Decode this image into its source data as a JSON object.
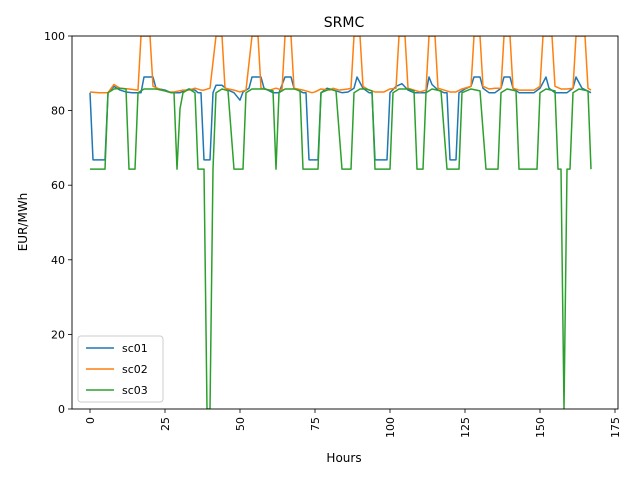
{
  "chart_data": {
    "type": "line",
    "title": "SRMC",
    "xlabel": "Hours",
    "ylabel": "EUR/MWh",
    "xlim": [
      -6,
      176
    ],
    "ylim": [
      0,
      100
    ],
    "xticks": [
      0,
      25,
      50,
      75,
      100,
      125,
      150,
      175
    ],
    "yticks": [
      0,
      20,
      40,
      60,
      80,
      100
    ],
    "xtick_rotation": 90,
    "grid": false,
    "legend_position": "lower-left",
    "series": [
      {
        "name": "sc01",
        "color": "#1f77b4",
        "points": [
          [
            0,
            84.8
          ],
          [
            1,
            66.8
          ],
          [
            5,
            66.8
          ],
          [
            6,
            84.8
          ],
          [
            8,
            86.5
          ],
          [
            10,
            85.5
          ],
          [
            12,
            85
          ],
          [
            14,
            84.8
          ],
          [
            17,
            84.8
          ],
          [
            18,
            89
          ],
          [
            21,
            89
          ],
          [
            22,
            86
          ],
          [
            25,
            85.5
          ],
          [
            27,
            84.8
          ],
          [
            30,
            84.8
          ],
          [
            33,
            85.8
          ],
          [
            35,
            85.5
          ],
          [
            36,
            84.8
          ],
          [
            37,
            84.8
          ],
          [
            38,
            66.8
          ],
          [
            40,
            66.8
          ],
          [
            41,
            84.8
          ],
          [
            42,
            86.8
          ],
          [
            44,
            86.8
          ],
          [
            46,
            85.5
          ],
          [
            48,
            84.8
          ],
          [
            50,
            82.8
          ],
          [
            51,
            85
          ],
          [
            53,
            86
          ],
          [
            54,
            89
          ],
          [
            57,
            89
          ],
          [
            58,
            86
          ],
          [
            61,
            84.8
          ],
          [
            63,
            84.8
          ],
          [
            65,
            89
          ],
          [
            67,
            89
          ],
          [
            68,
            86
          ],
          [
            71,
            84.8
          ],
          [
            72,
            84.8
          ],
          [
            73,
            66.8
          ],
          [
            76,
            66.8
          ],
          [
            77,
            84.8
          ],
          [
            79,
            86
          ],
          [
            81,
            85.5
          ],
          [
            84,
            84.8
          ],
          [
            86,
            85
          ],
          [
            88,
            86
          ],
          [
            89,
            89
          ],
          [
            90,
            87.5
          ],
          [
            91,
            86
          ],
          [
            93,
            84.8
          ],
          [
            94,
            84.8
          ],
          [
            95,
            66.8
          ],
          [
            99,
            66.8
          ],
          [
            100,
            84.8
          ],
          [
            102,
            86.5
          ],
          [
            104,
            87.2
          ],
          [
            106,
            85.5
          ],
          [
            108,
            84.8
          ],
          [
            110,
            84.8
          ],
          [
            112,
            84.8
          ],
          [
            113,
            89
          ],
          [
            114,
            87
          ],
          [
            116,
            85.5
          ],
          [
            118,
            84.8
          ],
          [
            119,
            84.8
          ],
          [
            120,
            66.8
          ],
          [
            122,
            66.8
          ],
          [
            123,
            84.8
          ],
          [
            125,
            85.8
          ],
          [
            127,
            86.5
          ],
          [
            128,
            89
          ],
          [
            130,
            89
          ],
          [
            131,
            86
          ],
          [
            133,
            84.8
          ],
          [
            135,
            84.8
          ],
          [
            137,
            86
          ],
          [
            138,
            89
          ],
          [
            140,
            89
          ],
          [
            141,
            86
          ],
          [
            143,
            84.8
          ],
          [
            146,
            84.8
          ],
          [
            148,
            84.8
          ],
          [
            150,
            86
          ],
          [
            152,
            89
          ],
          [
            153,
            86
          ],
          [
            155,
            84.8
          ],
          [
            157,
            84.8
          ],
          [
            159,
            84.8
          ],
          [
            161,
            86
          ],
          [
            162,
            89
          ],
          [
            164,
            86
          ],
          [
            167,
            84.8
          ]
        ]
      },
      {
        "name": "sc02",
        "color": "#ff7f0e",
        "points": [
          [
            0,
            85
          ],
          [
            3,
            84.8
          ],
          [
            6,
            84.8
          ],
          [
            8,
            87
          ],
          [
            10,
            86
          ],
          [
            13,
            85.8
          ],
          [
            16,
            85.5
          ],
          [
            17,
            100
          ],
          [
            19,
            100
          ],
          [
            20,
            100
          ],
          [
            21,
            86.5
          ],
          [
            24,
            85.5
          ],
          [
            26,
            85
          ],
          [
            28,
            85
          ],
          [
            31,
            85.5
          ],
          [
            33,
            85.5
          ],
          [
            35,
            86
          ],
          [
            37,
            85.5
          ],
          [
            38,
            85.5
          ],
          [
            40,
            86
          ],
          [
            42,
            100
          ],
          [
            44,
            100
          ],
          [
            45,
            86
          ],
          [
            48,
            85.5
          ],
          [
            50,
            85
          ],
          [
            52,
            85.5
          ],
          [
            54,
            100
          ],
          [
            56,
            100
          ],
          [
            57,
            86
          ],
          [
            60,
            85.5
          ],
          [
            62,
            86
          ],
          [
            64,
            85.5
          ],
          [
            65,
            100
          ],
          [
            67,
            100
          ],
          [
            68,
            86
          ],
          [
            71,
            85.5
          ],
          [
            74,
            84.8
          ],
          [
            75,
            85
          ],
          [
            77,
            85.8
          ],
          [
            80,
            85.5
          ],
          [
            81,
            86
          ],
          [
            83,
            85.5
          ],
          [
            86,
            85.8
          ],
          [
            87,
            86
          ],
          [
            88,
            100
          ],
          [
            90,
            100
          ],
          [
            91,
            86.5
          ],
          [
            93,
            85.5
          ],
          [
            95,
            85
          ],
          [
            98,
            85
          ],
          [
            100,
            85.8
          ],
          [
            102,
            86
          ],
          [
            103,
            100
          ],
          [
            105,
            100
          ],
          [
            106,
            86
          ],
          [
            108,
            85.5
          ],
          [
            110,
            85
          ],
          [
            112,
            85.5
          ],
          [
            113,
            100
          ],
          [
            115,
            100
          ],
          [
            116,
            86
          ],
          [
            118,
            85.5
          ],
          [
            120,
            85
          ],
          [
            122,
            85
          ],
          [
            124,
            85.8
          ],
          [
            127,
            86.5
          ],
          [
            128,
            100
          ],
          [
            130,
            100
          ],
          [
            131,
            86.5
          ],
          [
            133,
            85.8
          ],
          [
            135,
            86
          ],
          [
            137,
            86
          ],
          [
            138,
            100
          ],
          [
            140,
            100
          ],
          [
            141,
            86
          ],
          [
            143,
            85.5
          ],
          [
            145,
            85.5
          ],
          [
            148,
            85.5
          ],
          [
            150,
            86.5
          ],
          [
            151,
            100
          ],
          [
            154,
            100
          ],
          [
            155,
            86.5
          ],
          [
            157,
            85.8
          ],
          [
            159,
            85.8
          ],
          [
            161,
            86
          ],
          [
            162,
            100
          ],
          [
            165,
            100
          ],
          [
            166,
            86
          ],
          [
            167,
            85.5
          ]
        ]
      },
      {
        "name": "sc03",
        "color": "#2ca02c",
        "points": [
          [
            0,
            64.3
          ],
          [
            5,
            64.3
          ],
          [
            6,
            84.8
          ],
          [
            8,
            85.8
          ],
          [
            10,
            86
          ],
          [
            12,
            85.8
          ],
          [
            13,
            64.3
          ],
          [
            15,
            64.3
          ],
          [
            16,
            84.8
          ],
          [
            18,
            85.8
          ],
          [
            22,
            85.8
          ],
          [
            25,
            85.3
          ],
          [
            27,
            84.8
          ],
          [
            28,
            84.8
          ],
          [
            29,
            64.3
          ],
          [
            30,
            80.5
          ],
          [
            31,
            84.8
          ],
          [
            33,
            85.8
          ],
          [
            35,
            84.8
          ],
          [
            36,
            64.3
          ],
          [
            38,
            64.3
          ],
          [
            39,
            0
          ],
          [
            40,
            0
          ],
          [
            41,
            64.3
          ],
          [
            42,
            84.8
          ],
          [
            44,
            85.8
          ],
          [
            46,
            85.3
          ],
          [
            48,
            64.3
          ],
          [
            51,
            64.3
          ],
          [
            52,
            84.8
          ],
          [
            54,
            85.8
          ],
          [
            58,
            85.8
          ],
          [
            61,
            85.3
          ],
          [
            62,
            64.3
          ],
          [
            63,
            84.8
          ],
          [
            65,
            85.8
          ],
          [
            68,
            85.8
          ],
          [
            70,
            85.3
          ],
          [
            71,
            64.3
          ],
          [
            76,
            64.3
          ],
          [
            77,
            84.8
          ],
          [
            80,
            85.8
          ],
          [
            82,
            85.3
          ],
          [
            84,
            64.3
          ],
          [
            87,
            64.3
          ],
          [
            88,
            84.8
          ],
          [
            90,
            85.8
          ],
          [
            92,
            85.8
          ],
          [
            94,
            85.3
          ],
          [
            95,
            64.3
          ],
          [
            100,
            64.3
          ],
          [
            101,
            84.8
          ],
          [
            103,
            85.8
          ],
          [
            106,
            85.8
          ],
          [
            108,
            85.3
          ],
          [
            109,
            64.3
          ],
          [
            111,
            64.3
          ],
          [
            112,
            84.8
          ],
          [
            114,
            85.8
          ],
          [
            117,
            85.3
          ],
          [
            119,
            64.3
          ],
          [
            123,
            64.3
          ],
          [
            124,
            84.8
          ],
          [
            127,
            85.8
          ],
          [
            130,
            85.3
          ],
          [
            132,
            64.3
          ],
          [
            136,
            64.3
          ],
          [
            137,
            84.8
          ],
          [
            139,
            85.8
          ],
          [
            142,
            85.3
          ],
          [
            143,
            64.3
          ],
          [
            149,
            64.3
          ],
          [
            150,
            84.8
          ],
          [
            152,
            85.8
          ],
          [
            155,
            85.3
          ],
          [
            156,
            64.3
          ],
          [
            157,
            64.3
          ],
          [
            158,
            0
          ],
          [
            159,
            64.3
          ],
          [
            160,
            64.3
          ],
          [
            161,
            84.8
          ],
          [
            163,
            85.8
          ],
          [
            166,
            85.3
          ],
          [
            167,
            64.3
          ]
        ]
      }
    ]
  }
}
